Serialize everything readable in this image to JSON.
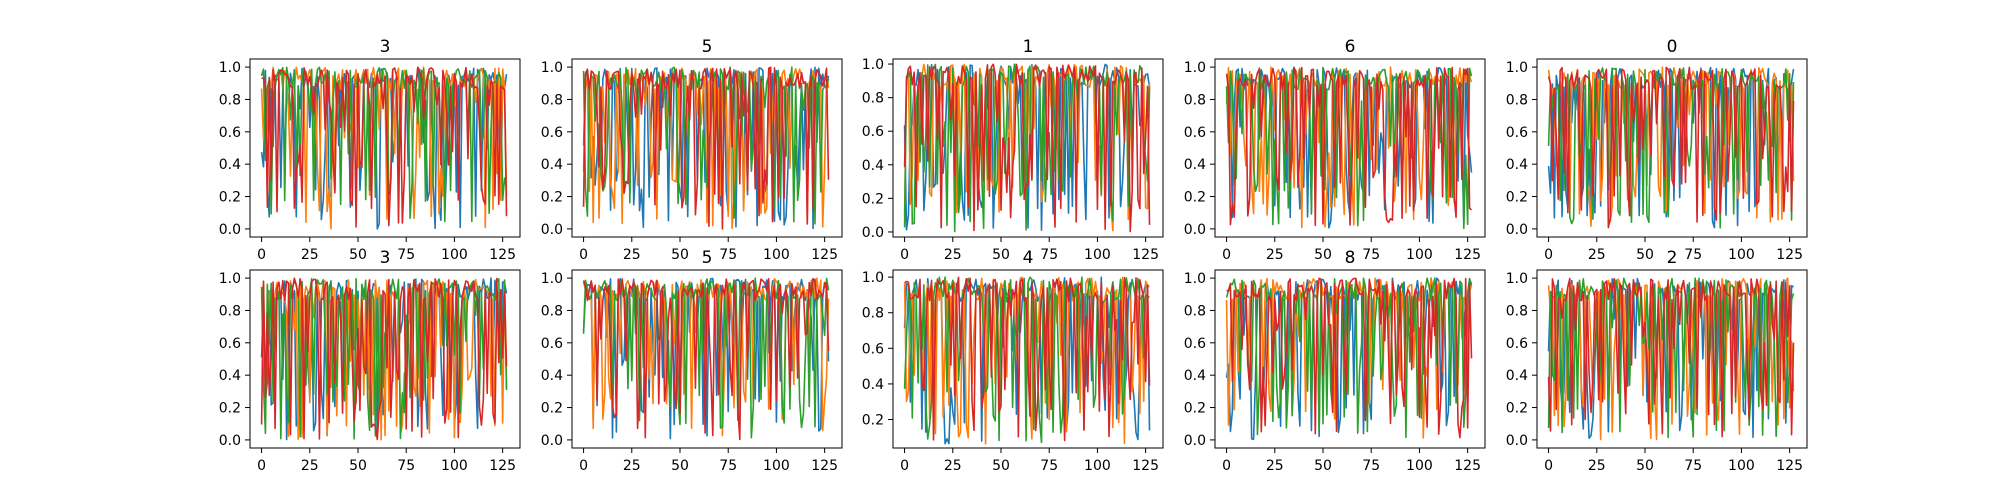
{
  "chart_data": [
    {
      "type": "line",
      "title": "3",
      "xlim": [
        -6,
        134
      ],
      "ylim": [
        -0.05,
        1.05
      ],
      "xticks": [
        "0",
        "25",
        "50",
        "75",
        "100",
        "125"
      ],
      "yticks": [
        "0.0",
        "0.2",
        "0.4",
        "0.6",
        "0.8",
        "1.0"
      ],
      "n_points": 128,
      "seed": 11,
      "series_count": 4
    },
    {
      "type": "line",
      "title": "5",
      "xlim": [
        -6,
        134
      ],
      "ylim": [
        -0.05,
        1.05
      ],
      "xticks": [
        "0",
        "25",
        "50",
        "75",
        "100",
        "125"
      ],
      "yticks": [
        "0.0",
        "0.2",
        "0.4",
        "0.6",
        "0.8",
        "1.0"
      ],
      "n_points": 128,
      "seed": 23,
      "series_count": 4
    },
    {
      "type": "line",
      "title": "1",
      "xlim": [
        -6,
        134
      ],
      "ylim": [
        -0.03,
        1.03
      ],
      "xticks": [
        "0",
        "25",
        "50",
        "75",
        "100",
        "125"
      ],
      "yticks": [
        "0.0",
        "0.2",
        "0.4",
        "0.6",
        "0.8",
        "1.0"
      ],
      "n_points": 128,
      "seed": 37,
      "series_count": 4
    },
    {
      "type": "line",
      "title": "6",
      "xlim": [
        -6,
        134
      ],
      "ylim": [
        -0.05,
        1.05
      ],
      "xticks": [
        "0",
        "25",
        "50",
        "75",
        "100",
        "125"
      ],
      "yticks": [
        "0.0",
        "0.2",
        "0.4",
        "0.6",
        "0.8",
        "1.0"
      ],
      "n_points": 128,
      "seed": 41,
      "series_count": 4
    },
    {
      "type": "line",
      "title": "0",
      "xlim": [
        -6,
        134
      ],
      "ylim": [
        -0.05,
        1.05
      ],
      "xticks": [
        "0",
        "25",
        "50",
        "75",
        "100",
        "125"
      ],
      "yticks": [
        "0.0",
        "0.2",
        "0.4",
        "0.6",
        "0.8",
        "1.0"
      ],
      "n_points": 128,
      "seed": 53,
      "series_count": 4
    },
    {
      "type": "line",
      "title": "3",
      "xlim": [
        -6,
        134
      ],
      "ylim": [
        -0.05,
        1.05
      ],
      "xticks": [
        "0",
        "25",
        "50",
        "75",
        "100",
        "125"
      ],
      "yticks": [
        "0.0",
        "0.2",
        "0.4",
        "0.6",
        "0.8",
        "1.0"
      ],
      "n_points": 128,
      "seed": 67,
      "series_count": 4
    },
    {
      "type": "line",
      "title": "5",
      "xlim": [
        -6,
        134
      ],
      "ylim": [
        -0.05,
        1.05
      ],
      "xticks": [
        "0",
        "25",
        "50",
        "75",
        "100",
        "125"
      ],
      "yticks": [
        "0.0",
        "0.2",
        "0.4",
        "0.6",
        "0.8",
        "1.0"
      ],
      "n_points": 128,
      "seed": 71,
      "series_count": 4
    },
    {
      "type": "line",
      "title": "4",
      "xlim": [
        -6,
        134
      ],
      "ylim": [
        0.04,
        1.04
      ],
      "xticks": [
        "0",
        "25",
        "50",
        "75",
        "100",
        "125"
      ],
      "yticks": [
        "0.2",
        "0.4",
        "0.6",
        "0.8",
        "1.0"
      ],
      "n_points": 128,
      "seed": 83,
      "series_count": 4
    },
    {
      "type": "line",
      "title": "8",
      "xlim": [
        -6,
        134
      ],
      "ylim": [
        -0.05,
        1.05
      ],
      "xticks": [
        "0",
        "25",
        "50",
        "75",
        "100",
        "125"
      ],
      "yticks": [
        "0.0",
        "0.2",
        "0.4",
        "0.6",
        "0.8",
        "1.0"
      ],
      "n_points": 128,
      "seed": 97,
      "series_count": 4
    },
    {
      "type": "line",
      "title": "2",
      "xlim": [
        -6,
        134
      ],
      "ylim": [
        -0.05,
        1.05
      ],
      "xticks": [
        "0",
        "25",
        "50",
        "75",
        "100",
        "125"
      ],
      "yticks": [
        "0.0",
        "0.2",
        "0.4",
        "0.6",
        "0.8",
        "1.0"
      ],
      "n_points": 128,
      "seed": 101,
      "series_count": 4
    }
  ],
  "series_colors": [
    "#1f77b4",
    "#ff7f0e",
    "#2ca02c",
    "#d62728"
  ],
  "grid": false,
  "legend": "none"
}
